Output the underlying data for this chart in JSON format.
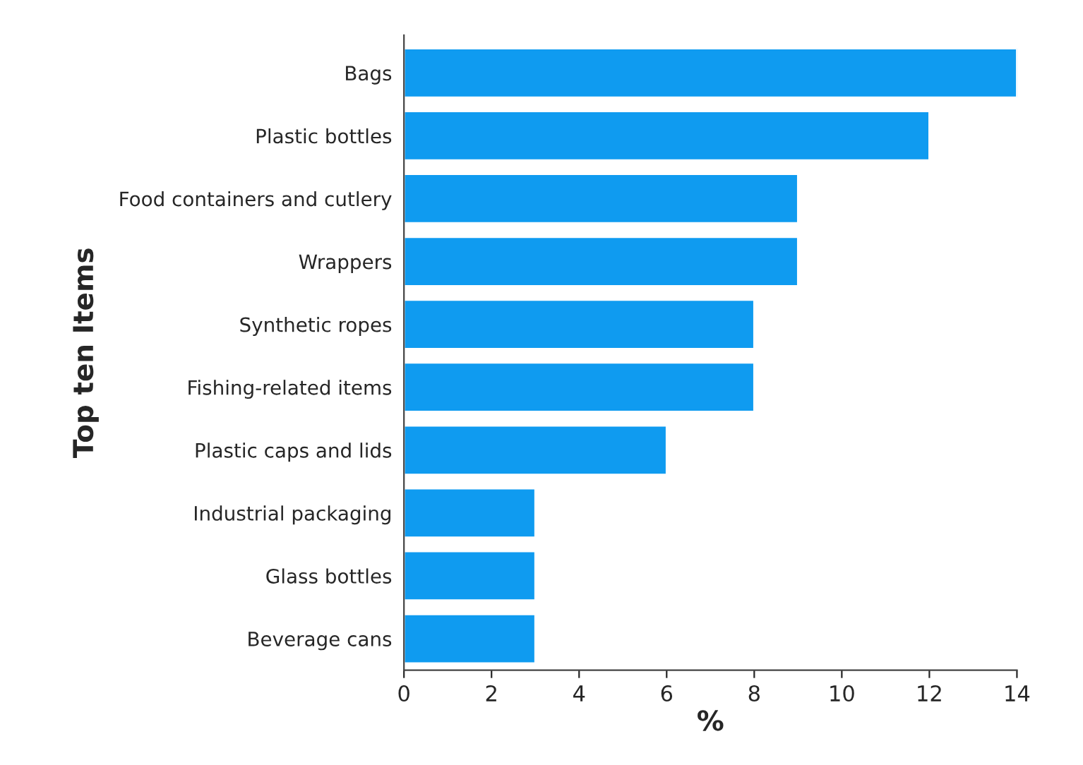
{
  "chart_data": {
    "type": "bar",
    "orientation": "horizontal",
    "xlabel": "%",
    "ylabel": "Top ten Items",
    "categories": [
      "Bags",
      "Plastic bottles",
      "Food containers and cutlery",
      "Wrappers",
      "Synthetic ropes",
      "Fishing-related items",
      "Plastic caps and lids",
      "Industrial packaging",
      "Glass bottles",
      "Beverage cans"
    ],
    "values": [
      14,
      12,
      9,
      9,
      8,
      8,
      6,
      3,
      3,
      3
    ],
    "color": "#0f9bf0",
    "xlim": [
      0,
      14
    ],
    "xticks": [
      0,
      2,
      4,
      6,
      8,
      10,
      12,
      14
    ],
    "grid": false,
    "legend": false
  }
}
